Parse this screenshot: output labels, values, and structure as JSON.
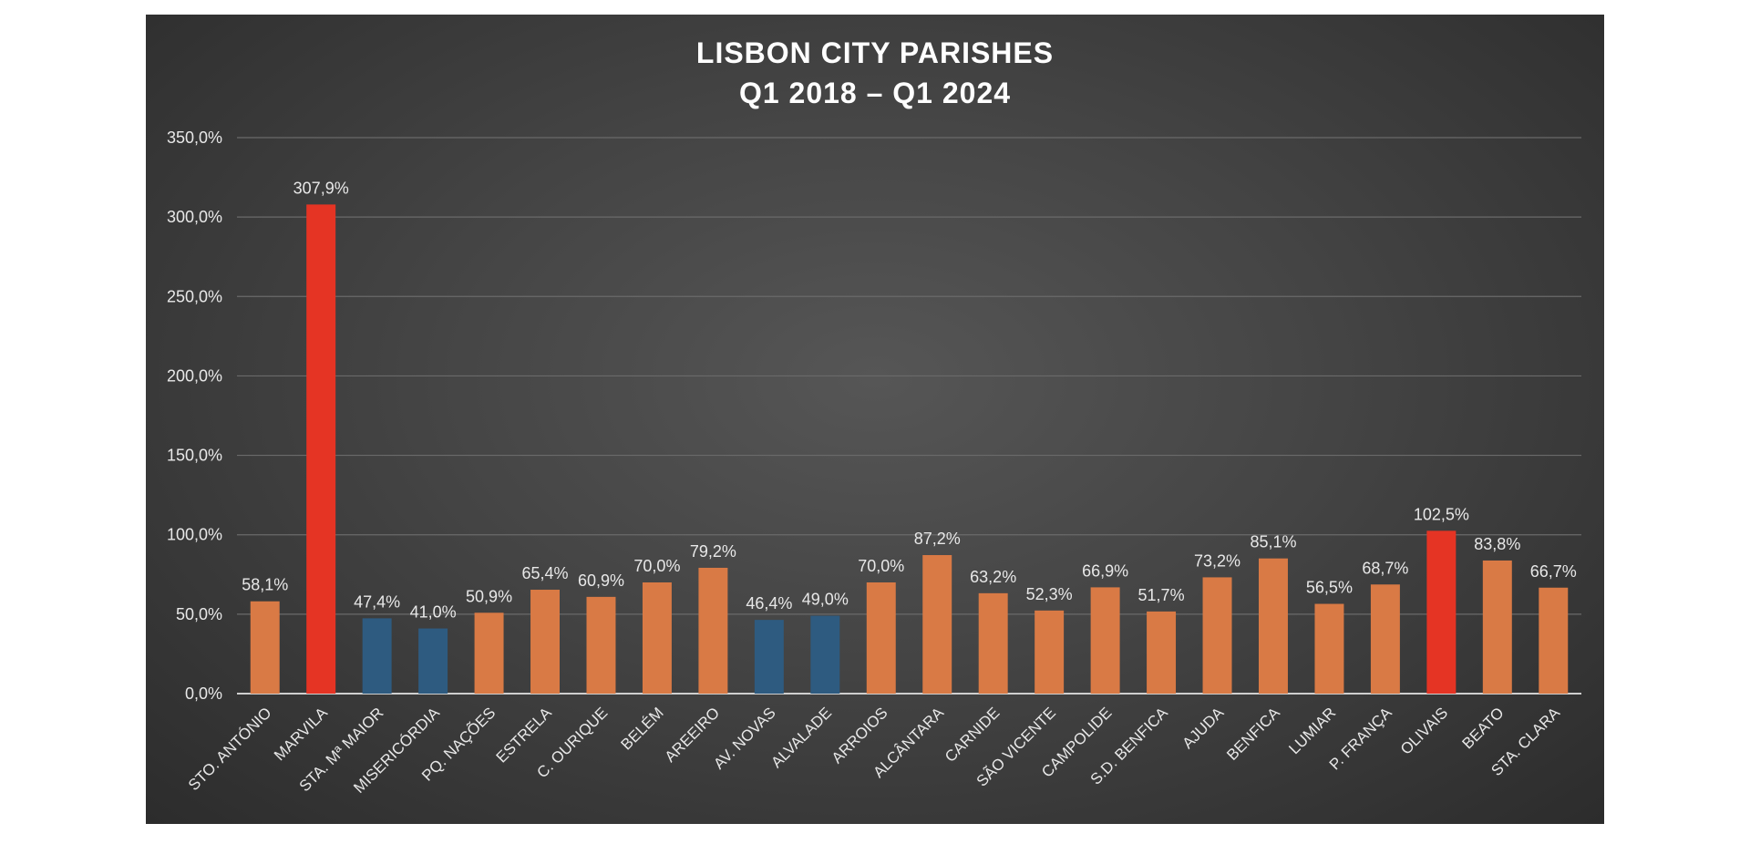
{
  "chart_data": {
    "type": "bar",
    "title_lines": [
      "LISBON CITY PARISHES",
      "Q1 2018 – Q1 2024"
    ],
    "categories": [
      "STO. ANTÓNIO",
      "MARVILA",
      "STA. Mª MAIOR",
      "MISERICÓRDIA",
      "PQ. NAÇÕES",
      "ESTRELA",
      "C. OURIQUE",
      "BELÉM",
      "AREEIRO",
      "AV. NOVAS",
      "ALVALADE",
      "ARROIOS",
      "ALCÂNTARA",
      "CARNIDE",
      "SÃO VICENTE",
      "CAMPOLIDE",
      "S.D. BENFICA",
      "AJUDA",
      "BENFICA",
      "LUMIAR",
      "P. FRANÇA",
      "OLIVAIS",
      "BEATO",
      "STA. CLARA"
    ],
    "values": [
      58.1,
      307.9,
      47.4,
      41.0,
      50.9,
      65.4,
      60.9,
      70.0,
      79.2,
      46.4,
      49.0,
      70.0,
      87.2,
      63.2,
      52.3,
      66.9,
      51.7,
      73.2,
      85.1,
      56.5,
      68.7,
      102.5,
      83.8,
      66.7
    ],
    "value_labels": [
      "58,1%",
      "307,9%",
      "47,4%",
      "41,0%",
      "50,9%",
      "65,4%",
      "60,9%",
      "70,0%",
      "79,2%",
      "46,4%",
      "49,0%",
      "70,0%",
      "87,2%",
      "63,2%",
      "52,3%",
      "66,9%",
      "51,7%",
      "73,2%",
      "85,1%",
      "56,5%",
      "68,7%",
      "102,5%",
      "83,8%",
      "66,7%"
    ],
    "bar_colors": [
      "orange",
      "red",
      "blue",
      "blue",
      "orange",
      "orange",
      "orange",
      "orange",
      "orange",
      "blue",
      "blue",
      "orange",
      "orange",
      "orange",
      "orange",
      "orange",
      "orange",
      "orange",
      "orange",
      "orange",
      "orange",
      "red",
      "orange",
      "orange"
    ],
    "palette": {
      "orange": "#D97A45",
      "red": "#E53424",
      "blue": "#2E5B80",
      "text": "#e8e8e8",
      "grid": "#6a6a6a",
      "axis": "#cfcfcf"
    },
    "ylim": [
      0,
      350
    ],
    "ytick_values": [
      0,
      50,
      100,
      150,
      200,
      250,
      300,
      350
    ],
    "ytick_labels": [
      "0,0%",
      "50,0%",
      "100,0%",
      "150,0%",
      "200,0%",
      "250,0%",
      "300,0%",
      "350,0%"
    ],
    "grid": true,
    "xlabel": "",
    "ylabel": ""
  }
}
